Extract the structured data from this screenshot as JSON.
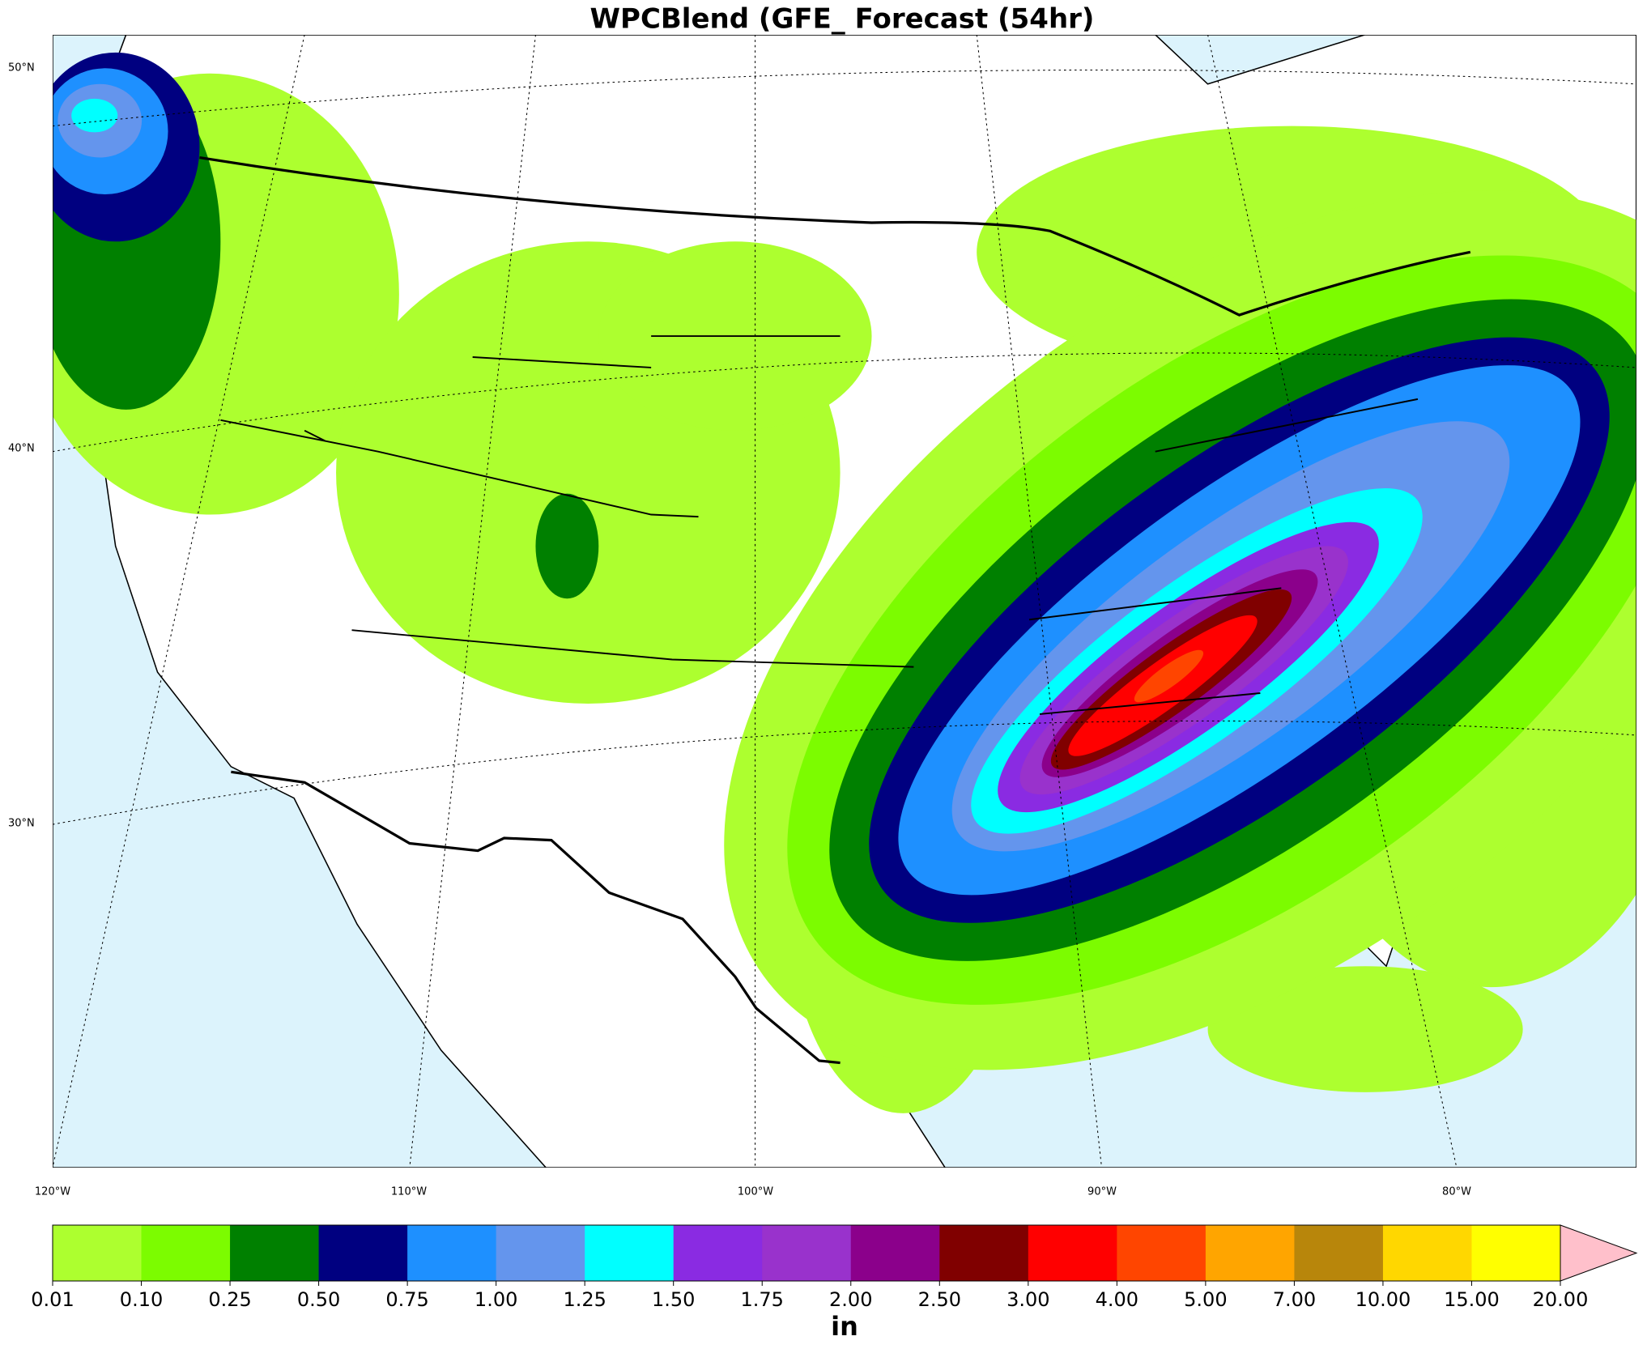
{
  "title": "WPCBlend (GFE_ Forecast (54hr)",
  "map": {
    "lat_labels": [
      "50°N",
      "40°N",
      "30°N"
    ],
    "lon_labels": [
      "120°W",
      "110°W",
      "100°W",
      "90°W",
      "80°W"
    ]
  },
  "colorbar": {
    "colors": [
      "#adff2f",
      "#7cfc00",
      "#008000",
      "#000080",
      "#1e90ff",
      "#6495ed",
      "#00ffff",
      "#8a2be2",
      "#9932cc",
      "#8b008b",
      "#800000",
      "#ff0000",
      "#ff4500",
      "#ffa500",
      "#b8860b",
      "#ffd700",
      "#ffff00"
    ],
    "extend_color": "#ffc0cb",
    "ticks": [
      "0.01",
      "0.10",
      "0.25",
      "0.50",
      "0.75",
      "1.00",
      "1.25",
      "1.50",
      "1.75",
      "2.00",
      "2.50",
      "3.00",
      "4.00",
      "5.00",
      "7.00",
      "10.00",
      "15.00",
      "20.00"
    ],
    "unit": "in"
  }
}
